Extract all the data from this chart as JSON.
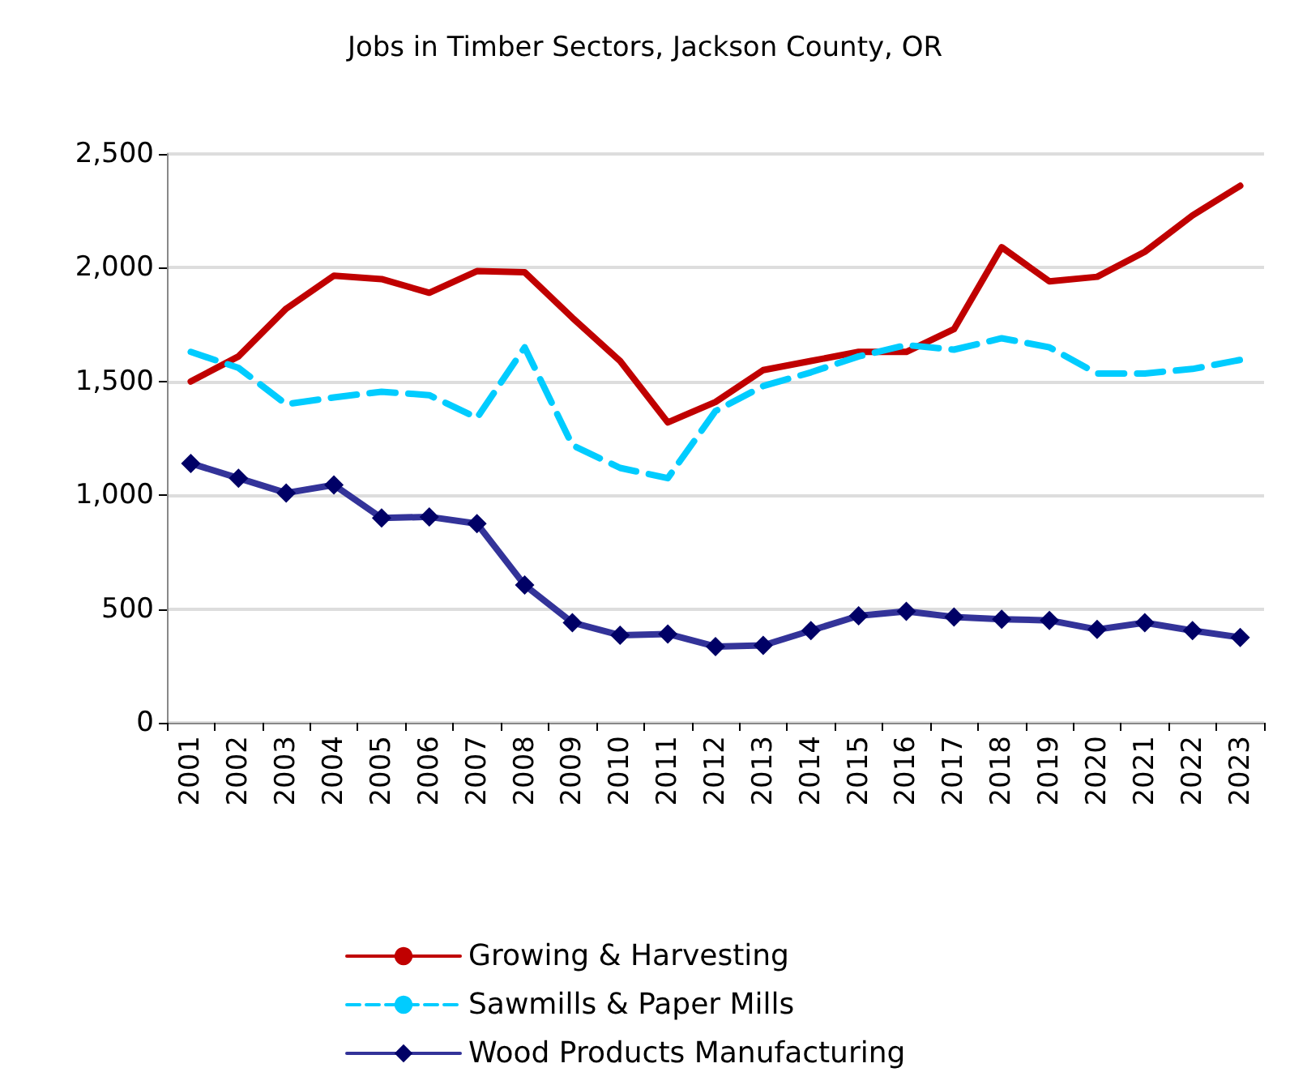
{
  "chart_data": {
    "type": "line",
    "title": "Jobs in Timber Sectors, Jackson County, OR",
    "categories": [
      "2001",
      "2002",
      "2003",
      "2004",
      "2005",
      "2006",
      "2007",
      "2008",
      "2009",
      "2010",
      "2011",
      "2012",
      "2013",
      "2014",
      "2015",
      "2016",
      "2017",
      "2018",
      "2019",
      "2020",
      "2021",
      "2022",
      "2023"
    ],
    "series": [
      {
        "name": "Growing & Harvesting",
        "color": "#c00000",
        "marker": "none",
        "line_style": "solid",
        "values": [
          1500,
          1610,
          1820,
          1965,
          1950,
          1890,
          1985,
          1980,
          1780,
          1590,
          1320,
          1410,
          1550,
          1590,
          1630,
          1630,
          1730,
          2090,
          1940,
          1960,
          2070,
          2230,
          2360
        ]
      },
      {
        "name": "Sawmills & Paper Mills",
        "color": "#00ccff",
        "marker": "none",
        "line_style": "dashed",
        "values": [
          1630,
          1560,
          1400,
          1430,
          1455,
          1440,
          1340,
          1650,
          1220,
          1120,
          1075,
          1370,
          1480,
          1540,
          1610,
          1660,
          1640,
          1690,
          1650,
          1535,
          1535,
          1555,
          1595
        ]
      },
      {
        "name": "Wood Products Manufacturing",
        "color": "#333399",
        "marker": "diamond",
        "line_style": "solid",
        "values": [
          1140,
          1075,
          1010,
          1045,
          900,
          905,
          875,
          605,
          440,
          385,
          390,
          335,
          340,
          405,
          470,
          490,
          465,
          455,
          450,
          410,
          440,
          405,
          375
        ]
      }
    ],
    "ylim": [
      0,
      2500
    ],
    "yticks": [
      0,
      500,
      {
        "value": 1000,
        "label": "1,000"
      },
      {
        "value": 1500,
        "label": "1,500"
      },
      {
        "value": 2000,
        "label": "2,000"
      },
      {
        "value": 2500,
        "label": "2,500"
      }
    ],
    "grid": "y",
    "legend": "bottom"
  }
}
